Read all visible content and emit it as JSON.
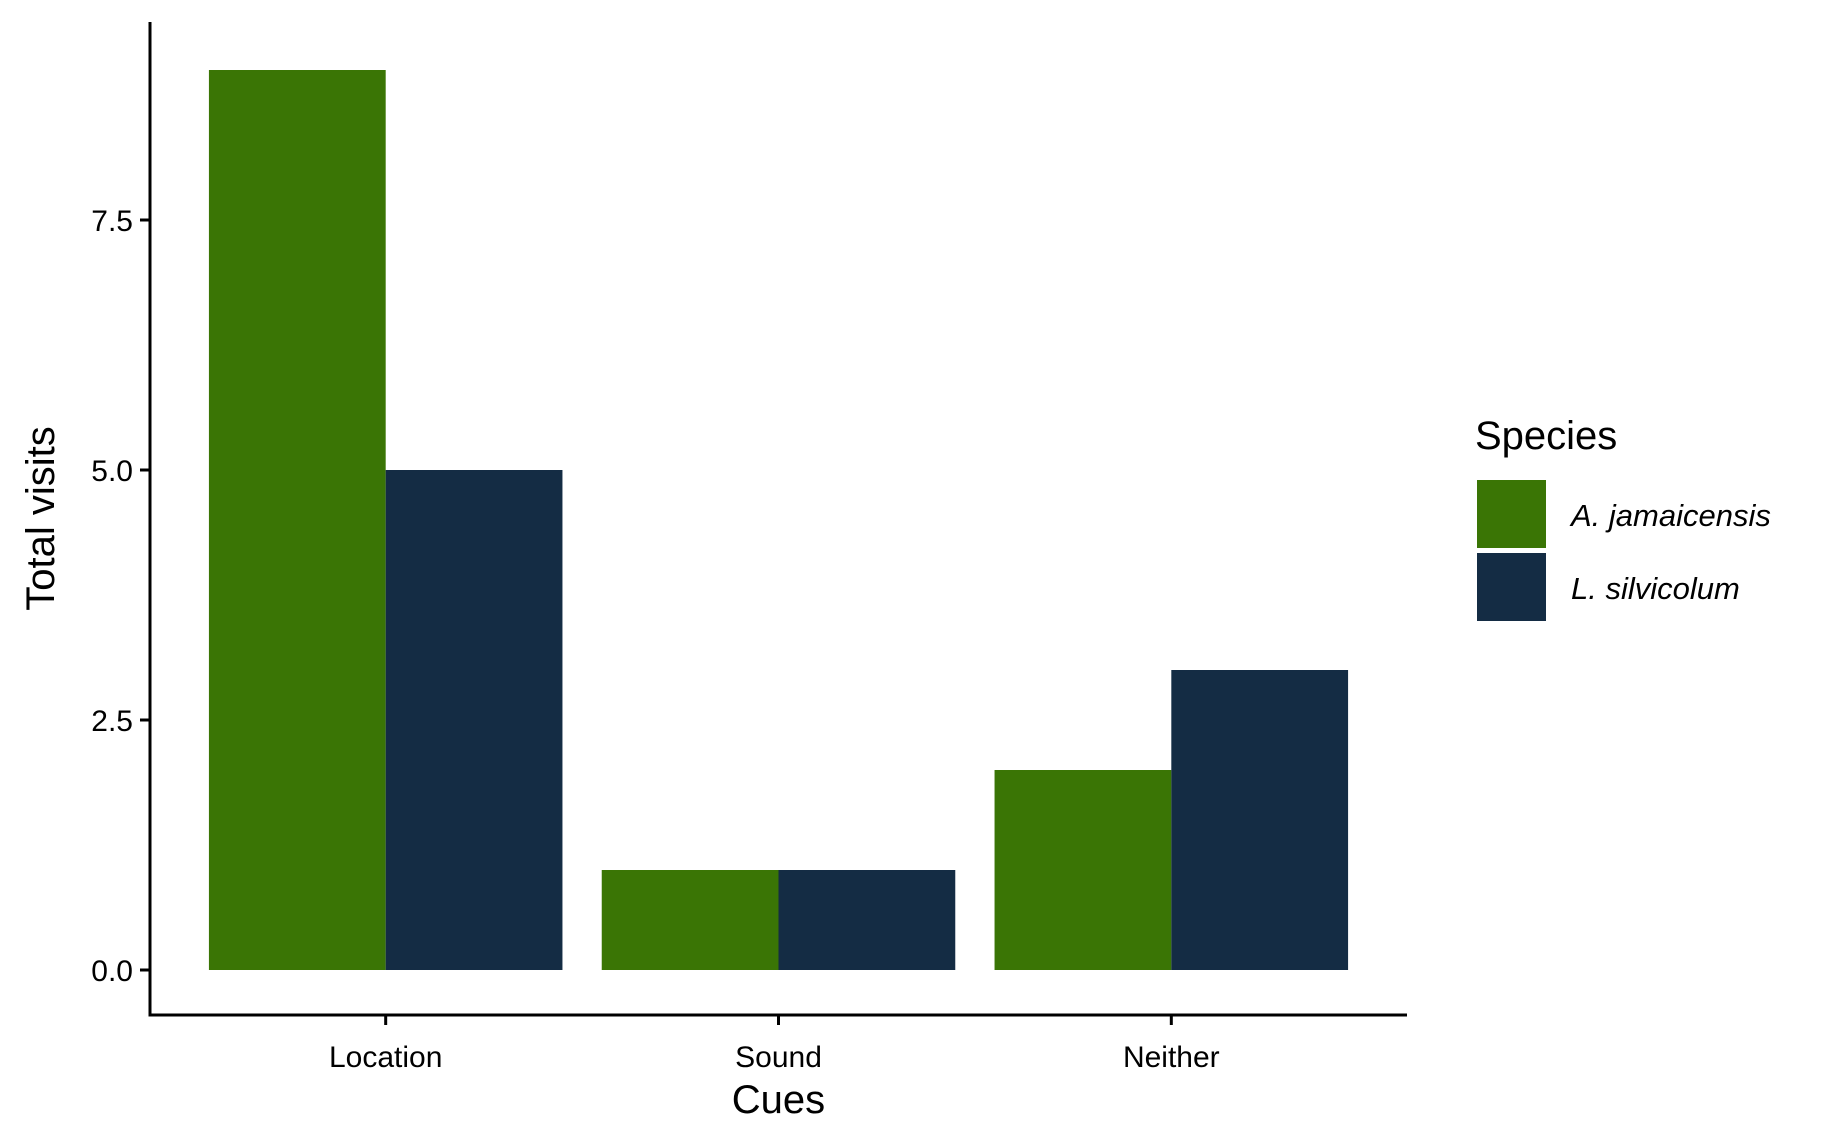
{
  "chart_data": {
    "type": "bar",
    "title": "",
    "xlabel": "Cues",
    "ylabel": "Total visits",
    "categories": [
      "Location",
      "Sound",
      "Neither"
    ],
    "series": [
      {
        "name": "A. jamaicensis",
        "values": [
          9,
          1,
          2
        ],
        "color": "#3a7505"
      },
      {
        "name": "L. silvicolum",
        "values": [
          5,
          1,
          3
        ],
        "color": "#142c44"
      }
    ],
    "ylim": [
      -0.45,
      9.48
    ],
    "yticks": [
      0.0,
      2.5,
      5.0,
      7.5
    ],
    "ytick_labels": [
      "0.0",
      "2.5",
      "5.0",
      "7.5"
    ],
    "legend": {
      "title": "Species",
      "placement": "right"
    },
    "grid": false
  }
}
